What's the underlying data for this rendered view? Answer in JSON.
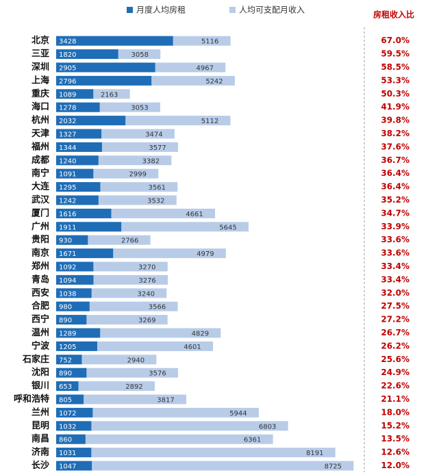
{
  "chart_data": {
    "type": "overlap-bar",
    "ratio_title": "房租收入比",
    "categories": [
      "北京",
      "三亚",
      "深圳",
      "上海",
      "重庆",
      "海口",
      "杭州",
      "天津",
      "福州",
      "成都",
      "南宁",
      "大连",
      "武汉",
      "厦门",
      "广州",
      "贵阳",
      "南京",
      "郑州",
      "青岛",
      "西安",
      "合肥",
      "西宁",
      "温州",
      "宁波",
      "石家庄",
      "沈阳",
      "银川",
      "呼和浩特",
      "兰州",
      "昆明",
      "南昌",
      "济南",
      "长沙"
    ],
    "series": [
      {
        "name": "人均可支配月收入",
        "color": "#b8cce8",
        "values": [
          5116,
          3058,
          4967,
          5242,
          2163,
          3053,
          5112,
          3474,
          3577,
          3382,
          2999,
          3561,
          3532,
          4661,
          5645,
          2766,
          4979,
          3270,
          3276,
          3240,
          3566,
          3269,
          4829,
          4601,
          2940,
          3576,
          2892,
          3817,
          5944,
          6803,
          6361,
          8191,
          8725
        ]
      },
      {
        "name": "月度人均房租",
        "color": "#1f6db6",
        "values": [
          3428,
          1820,
          2905,
          2796,
          1089,
          1278,
          2032,
          1327,
          1344,
          1240,
          1091,
          1295,
          1242,
          1616,
          1911,
          930,
          1671,
          1092,
          1094,
          1038,
          980,
          890,
          1289,
          1205,
          752,
          890,
          653,
          805,
          1072,
          1032,
          860,
          1031,
          1047
        ]
      }
    ],
    "ratio": {
      "color": "#c00000",
      "values": [
        67.0,
        59.5,
        58.5,
        53.3,
        50.3,
        41.9,
        39.8,
        38.2,
        37.6,
        36.7,
        36.4,
        36.4,
        35.2,
        34.7,
        33.9,
        33.6,
        33.6,
        33.4,
        33.4,
        32.0,
        27.5,
        27.2,
        26.7,
        26.2,
        25.6,
        24.9,
        22.6,
        21.1,
        18.0,
        15.2,
        13.5,
        12.6,
        12.0
      ],
      "value_labels": [
        "67.0%",
        "59.5%",
        "58.5%",
        "53.3%",
        "50.3%",
        "41.9%",
        "39.8%",
        "38.2%",
        "37.6%",
        "36.7%",
        "36.4%",
        "36.4%",
        "35.2%",
        "34.7%",
        "33.9%",
        "33.6%",
        "33.6%",
        "33.4%",
        "33.4%",
        "32.0%",
        "27.5%",
        "27.2%",
        "26.7%",
        "26.2%",
        "25.6%",
        "24.9%",
        "22.6%",
        "21.1%",
        "18.0%",
        "15.2%",
        "13.5%",
        "12.6%",
        "12.0%"
      ]
    },
    "xlim": [
      0,
      9000
    ]
  }
}
